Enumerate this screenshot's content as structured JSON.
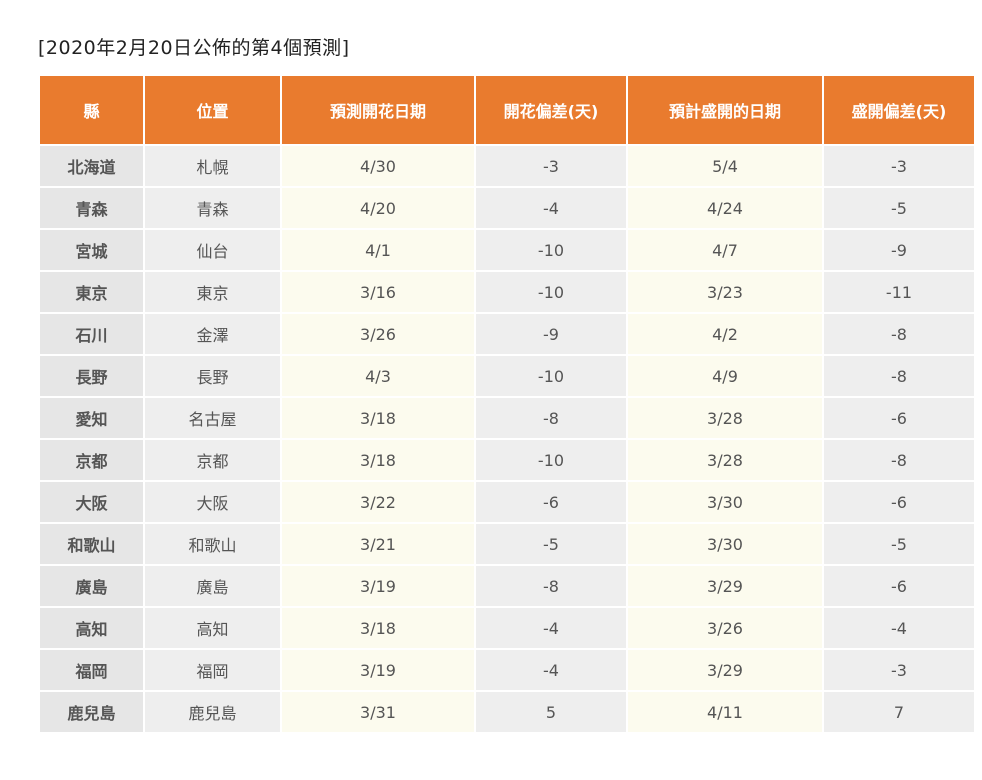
{
  "title": "[2020年2月20日公佈的第4個預測]",
  "table": {
    "headers": [
      "縣",
      "位置",
      "預測開花日期",
      "開花偏差(天)",
      "預計盛開的日期",
      "盛開偏差(天)"
    ],
    "rows": [
      [
        "北海道",
        "札幌",
        "4/30",
        "-3",
        "5/4",
        "-3"
      ],
      [
        "青森",
        "青森",
        "4/20",
        "-4",
        "4/24",
        "-5"
      ],
      [
        "宮城",
        "仙台",
        "4/1",
        "-10",
        "4/7",
        "-9"
      ],
      [
        "東京",
        "東京",
        "3/16",
        "-10",
        "3/23",
        "-11"
      ],
      [
        "石川",
        "金澤",
        "3/26",
        "-9",
        "4/2",
        "-8"
      ],
      [
        "長野",
        "長野",
        "4/3",
        "-10",
        "4/9",
        "-8"
      ],
      [
        "愛知",
        "名古屋",
        "3/18",
        "-8",
        "3/28",
        "-6"
      ],
      [
        "京都",
        "京都",
        "3/18",
        "-10",
        "3/28",
        "-8"
      ],
      [
        "大阪",
        "大阪",
        "3/22",
        "-6",
        "3/30",
        "-6"
      ],
      [
        "和歌山",
        "和歌山",
        "3/21",
        "-5",
        "3/30",
        "-5"
      ],
      [
        "廣島",
        "廣島",
        "3/19",
        "-8",
        "3/29",
        "-6"
      ],
      [
        "高知",
        "高知",
        "3/18",
        "-4",
        "3/26",
        "-4"
      ],
      [
        "福岡",
        "福岡",
        "3/19",
        "-4",
        "3/29",
        "-3"
      ],
      [
        "鹿兒島",
        "鹿兒島",
        "3/31",
        "5",
        "4/11",
        "7"
      ]
    ]
  },
  "colors": {
    "header_bg": "#e97b2e",
    "header_text": "#ffffff",
    "cell_gray": "#eeeeee",
    "cell_cream": "#fcfbee"
  }
}
